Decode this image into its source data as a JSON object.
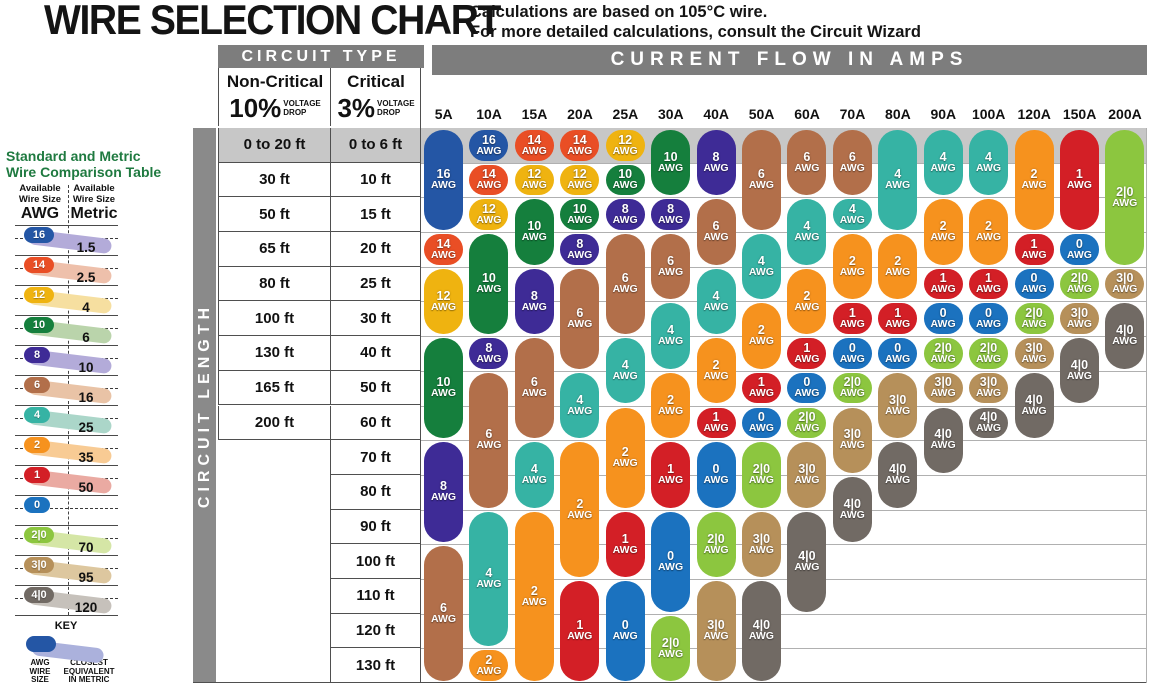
{
  "title": "WIRE SELECTION CHART",
  "subtitle": {
    "line1": "Calculations are based on 105°C wire.",
    "line2": "For more detailed calculations, consult the Circuit Wizard"
  },
  "header": {
    "circuit_type": "CIRCUIT TYPE",
    "current_flow": "CURRENT FLOW IN AMPS",
    "circuit_length": "CIRCUIT LENGTH",
    "non_critical": {
      "name": "Non-Critical",
      "pct": "10%",
      "vd1": "VOLTAGE",
      "vd2": "DROP"
    },
    "critical": {
      "name": "Critical",
      "pct": "3%",
      "vd1": "VOLTAGE",
      "vd2": "DROP"
    }
  },
  "awg_colors": {
    "16": "#2456a5",
    "14": "#e94e25",
    "12": "#efb310",
    "10": "#157f3d",
    "8": "#3e2b96",
    "6": "#b26f4a",
    "4": "#36b3a4",
    "2": "#f6921e",
    "1": "#d31f26",
    "0": "#1b72bf",
    "2|0": "#8cc63f",
    "3|0": "#b6905a",
    "4|0": "#716a64"
  },
  "colors": {
    "header_bar": "#7d7d7d",
    "length_bar": "#8a8a8a",
    "row1_band": "#c7c7c7",
    "grid_line": "#b0b0b0",
    "border_dark": "#4f4f4f",
    "sidebar_title": "#1f7a40"
  },
  "chart_data": {
    "type": "table",
    "title": "WIRE SELECTION CHART",
    "columns_axis": "CURRENT FLOW IN AMPS",
    "rows_axis": "CIRCUIT LENGTH",
    "amp_columns": [
      "5A",
      "10A",
      "15A",
      "20A",
      "25A",
      "30A",
      "40A",
      "50A",
      "60A",
      "70A",
      "80A",
      "90A",
      "100A",
      "120A",
      "150A",
      "200A"
    ],
    "length_rows": [
      {
        "non_critical": "0 to 20 ft",
        "critical": "0 to 6 ft"
      },
      {
        "non_critical": "30 ft",
        "critical": "10 ft"
      },
      {
        "non_critical": "50 ft",
        "critical": "15 ft"
      },
      {
        "non_critical": "65 ft",
        "critical": "20 ft"
      },
      {
        "non_critical": "80 ft",
        "critical": "25 ft"
      },
      {
        "non_critical": "100 ft",
        "critical": "30 ft"
      },
      {
        "non_critical": "130 ft",
        "critical": "40 ft"
      },
      {
        "non_critical": "165 ft",
        "critical": "50 ft"
      },
      {
        "non_critical": "200 ft",
        "critical": "60 ft"
      },
      {
        "non_critical": "",
        "critical": "70 ft"
      },
      {
        "non_critical": "",
        "critical": "80 ft"
      },
      {
        "non_critical": "",
        "critical": "90 ft"
      },
      {
        "non_critical": "",
        "critical": "100 ft"
      },
      {
        "non_critical": "",
        "critical": "110 ft"
      },
      {
        "non_critical": "",
        "critical": "120 ft"
      },
      {
        "non_critical": "",
        "critical": "130 ft"
      }
    ],
    "wire_runs": [
      {
        "amps": "5A",
        "pills": [
          {
            "awg": "16",
            "from": 1,
            "to": 3
          },
          {
            "awg": "14",
            "from": 4,
            "to": 4
          },
          {
            "awg": "12",
            "from": 5,
            "to": 6
          },
          {
            "awg": "10",
            "from": 7,
            "to": 9
          },
          {
            "awg": "8",
            "from": 10,
            "to": 12
          },
          {
            "awg": "6",
            "from": 13,
            "to": 16
          }
        ]
      },
      {
        "amps": "10A",
        "pills": [
          {
            "awg": "16",
            "from": 1,
            "to": 1
          },
          {
            "awg": "14",
            "from": 2,
            "to": 2
          },
          {
            "awg": "12",
            "from": 3,
            "to": 3
          },
          {
            "awg": "10",
            "from": 4,
            "to": 6
          },
          {
            "awg": "8",
            "from": 7,
            "to": 7
          },
          {
            "awg": "6",
            "from": 8,
            "to": 11
          },
          {
            "awg": "4",
            "from": 12,
            "to": 15
          },
          {
            "awg": "2",
            "from": 16,
            "to": 16
          }
        ]
      },
      {
        "amps": "15A",
        "pills": [
          {
            "awg": "14",
            "from": 1,
            "to": 1
          },
          {
            "awg": "12",
            "from": 2,
            "to": 2
          },
          {
            "awg": "10",
            "from": 3,
            "to": 4
          },
          {
            "awg": "8",
            "from": 5,
            "to": 6
          },
          {
            "awg": "6",
            "from": 7,
            "to": 9
          },
          {
            "awg": "4",
            "from": 10,
            "to": 11
          },
          {
            "awg": "2",
            "from": 12,
            "to": 16
          }
        ]
      },
      {
        "amps": "20A",
        "pills": [
          {
            "awg": "14",
            "from": 1,
            "to": 1
          },
          {
            "awg": "12",
            "from": 2,
            "to": 2
          },
          {
            "awg": "10",
            "from": 3,
            "to": 3
          },
          {
            "awg": "8",
            "from": 4,
            "to": 4
          },
          {
            "awg": "6",
            "from": 5,
            "to": 7
          },
          {
            "awg": "4",
            "from": 8,
            "to": 9
          },
          {
            "awg": "2",
            "from": 10,
            "to": 13
          },
          {
            "awg": "1",
            "from": 14,
            "to": 16
          }
        ]
      },
      {
        "amps": "25A",
        "pills": [
          {
            "awg": "12",
            "from": 1,
            "to": 1
          },
          {
            "awg": "10",
            "from": 2,
            "to": 2
          },
          {
            "awg": "8",
            "from": 3,
            "to": 3
          },
          {
            "awg": "6",
            "from": 4,
            "to": 6
          },
          {
            "awg": "4",
            "from": 7,
            "to": 8
          },
          {
            "awg": "2",
            "from": 9,
            "to": 11
          },
          {
            "awg": "1",
            "from": 12,
            "to": 13
          },
          {
            "awg": "0",
            "from": 14,
            "to": 16
          }
        ]
      },
      {
        "amps": "30A",
        "pills": [
          {
            "awg": "10",
            "from": 1,
            "to": 2
          },
          {
            "awg": "8",
            "from": 3,
            "to": 3
          },
          {
            "awg": "6",
            "from": 4,
            "to": 5
          },
          {
            "awg": "4",
            "from": 6,
            "to": 7
          },
          {
            "awg": "2",
            "from": 8,
            "to": 9
          },
          {
            "awg": "1",
            "from": 10,
            "to": 11
          },
          {
            "awg": "0",
            "from": 12,
            "to": 14
          },
          {
            "awg": "2|0",
            "from": 15,
            "to": 16
          }
        ]
      },
      {
        "amps": "40A",
        "pills": [
          {
            "awg": "8",
            "from": 1,
            "to": 2
          },
          {
            "awg": "6",
            "from": 3,
            "to": 4
          },
          {
            "awg": "4",
            "from": 5,
            "to": 6
          },
          {
            "awg": "2",
            "from": 7,
            "to": 8
          },
          {
            "awg": "1",
            "from": 9,
            "to": 9
          },
          {
            "awg": "0",
            "from": 10,
            "to": 11
          },
          {
            "awg": "2|0",
            "from": 12,
            "to": 13
          },
          {
            "awg": "3|0",
            "from": 14,
            "to": 16
          }
        ]
      },
      {
        "amps": "50A",
        "pills": [
          {
            "awg": "6",
            "from": 1,
            "to": 3
          },
          {
            "awg": "4",
            "from": 4,
            "to": 5
          },
          {
            "awg": "2",
            "from": 6,
            "to": 7
          },
          {
            "awg": "1",
            "from": 8,
            "to": 8
          },
          {
            "awg": "0",
            "from": 9,
            "to": 9
          },
          {
            "awg": "2|0",
            "from": 10,
            "to": 11
          },
          {
            "awg": "3|0",
            "from": 12,
            "to": 13
          },
          {
            "awg": "4|0",
            "from": 14,
            "to": 16
          }
        ]
      },
      {
        "amps": "60A",
        "pills": [
          {
            "awg": "6",
            "from": 1,
            "to": 2
          },
          {
            "awg": "4",
            "from": 3,
            "to": 4
          },
          {
            "awg": "2",
            "from": 5,
            "to": 6
          },
          {
            "awg": "1",
            "from": 7,
            "to": 7
          },
          {
            "awg": "0",
            "from": 8,
            "to": 8
          },
          {
            "awg": "2|0",
            "from": 9,
            "to": 9
          },
          {
            "awg": "3|0",
            "from": 10,
            "to": 11
          },
          {
            "awg": "4|0",
            "from": 12,
            "to": 14
          }
        ]
      },
      {
        "amps": "70A",
        "pills": [
          {
            "awg": "6",
            "from": 1,
            "to": 2
          },
          {
            "awg": "4",
            "from": 3,
            "to": 3
          },
          {
            "awg": "2",
            "from": 4,
            "to": 5
          },
          {
            "awg": "1",
            "from": 6,
            "to": 6
          },
          {
            "awg": "0",
            "from": 7,
            "to": 7
          },
          {
            "awg": "2|0",
            "from": 8,
            "to": 8
          },
          {
            "awg": "3|0",
            "from": 9,
            "to": 10
          },
          {
            "awg": "4|0",
            "from": 11,
            "to": 12
          }
        ]
      },
      {
        "amps": "80A",
        "pills": [
          {
            "awg": "4",
            "from": 1,
            "to": 3
          },
          {
            "awg": "2",
            "from": 4,
            "to": 5
          },
          {
            "awg": "1",
            "from": 6,
            "to": 6
          },
          {
            "awg": "0",
            "from": 7,
            "to": 7
          },
          {
            "awg": "3|0",
            "from": 8,
            "to": 9
          },
          {
            "awg": "4|0",
            "from": 10,
            "to": 11
          }
        ]
      },
      {
        "amps": "90A",
        "pills": [
          {
            "awg": "4",
            "from": 1,
            "to": 2
          },
          {
            "awg": "2",
            "from": 3,
            "to": 4
          },
          {
            "awg": "1",
            "from": 5,
            "to": 5
          },
          {
            "awg": "0",
            "from": 6,
            "to": 6
          },
          {
            "awg": "2|0",
            "from": 7,
            "to": 7
          },
          {
            "awg": "3|0",
            "from": 8,
            "to": 8
          },
          {
            "awg": "4|0",
            "from": 9,
            "to": 10
          }
        ]
      },
      {
        "amps": "100A",
        "pills": [
          {
            "awg": "4",
            "from": 1,
            "to": 2
          },
          {
            "awg": "2",
            "from": 3,
            "to": 4
          },
          {
            "awg": "1",
            "from": 5,
            "to": 5
          },
          {
            "awg": "0",
            "from": 6,
            "to": 6
          },
          {
            "awg": "2|0",
            "from": 7,
            "to": 7
          },
          {
            "awg": "3|0",
            "from": 8,
            "to": 8
          },
          {
            "awg": "4|0",
            "from": 9,
            "to": 9
          }
        ]
      },
      {
        "amps": "120A",
        "pills": [
          {
            "awg": "2",
            "from": 1,
            "to": 3
          },
          {
            "awg": "1",
            "from": 4,
            "to": 4
          },
          {
            "awg": "0",
            "from": 5,
            "to": 5
          },
          {
            "awg": "2|0",
            "from": 6,
            "to": 6
          },
          {
            "awg": "3|0",
            "from": 7,
            "to": 7
          },
          {
            "awg": "4|0",
            "from": 8,
            "to": 9
          }
        ]
      },
      {
        "amps": "150A",
        "pills": [
          {
            "awg": "1",
            "from": 1,
            "to": 3
          },
          {
            "awg": "0",
            "from": 4,
            "to": 4
          },
          {
            "awg": "2|0",
            "from": 5,
            "to": 5
          },
          {
            "awg": "3|0",
            "from": 6,
            "to": 6
          },
          {
            "awg": "4|0",
            "from": 7,
            "to": 8
          }
        ]
      },
      {
        "amps": "200A",
        "pills": [
          {
            "awg": "2|0",
            "from": 1,
            "to": 4
          },
          {
            "awg": "3|0",
            "from": 5,
            "to": 5
          },
          {
            "awg": "4|0",
            "from": 6,
            "to": 7
          }
        ]
      }
    ]
  },
  "sidebar": {
    "title1": "Standard and Metric",
    "title2": "Wire Comparison Table",
    "col1": {
      "l1": "Available",
      "l2": "Wire Size",
      "l3": "AWG"
    },
    "col2": {
      "l1": "Available",
      "l2": "Wire Size",
      "l3": "Metric"
    },
    "rows": [
      {
        "awg": "16",
        "metric": "1.5",
        "color": "#2456a5",
        "band": "#b3abd9"
      },
      {
        "awg": "14",
        "metric": "2.5",
        "color": "#e94e25",
        "band": "#eec0ab"
      },
      {
        "awg": "12",
        "metric": "4",
        "color": "#efb310",
        "band": "#f6dfa0"
      },
      {
        "awg": "10",
        "metric": "6",
        "color": "#157f3d",
        "band": "#bad4ab"
      },
      {
        "awg": "8",
        "metric": "10",
        "color": "#3e2b96",
        "band": "#b3abd9"
      },
      {
        "awg": "6",
        "metric": "16",
        "color": "#b26f4a",
        "band": "#e9c3a6"
      },
      {
        "awg": "4",
        "metric": "25",
        "color": "#36b3a4",
        "band": "#abd6c9"
      },
      {
        "awg": "2",
        "metric": "35",
        "color": "#f6921e",
        "band": "#f8cb94"
      },
      {
        "awg": "1",
        "metric": "50",
        "color": "#d31f26",
        "band": "#eaaaa2"
      },
      {
        "awg": "0",
        "metric": "",
        "color": "#1b72bf",
        "band": ""
      },
      {
        "awg": "2|0",
        "metric": "70",
        "color": "#8cc63f",
        "band": "#d5e6a6"
      },
      {
        "awg": "3|0",
        "metric": "95",
        "color": "#b6905a",
        "band": "#ddc79f"
      },
      {
        "awg": "4|0",
        "metric": "120",
        "color": "#716a64",
        "band": "#c6c1bb"
      }
    ],
    "key": {
      "label": "KEY",
      "pill_color": "#2456a5",
      "band_color": "#abb1dc",
      "left1": "AWG",
      "left2": "WIRE",
      "left3": "SIZE",
      "right1": "CLOSEST",
      "right2": "EQUIVALENT",
      "right3": "IN METRIC"
    }
  }
}
